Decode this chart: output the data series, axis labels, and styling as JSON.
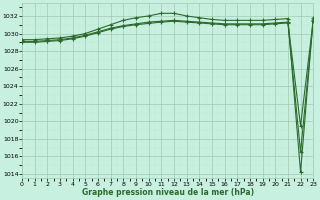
{
  "x": [
    0,
    1,
    2,
    3,
    4,
    5,
    6,
    7,
    8,
    9,
    10,
    11,
    12,
    13,
    14,
    15,
    16,
    17,
    18,
    19,
    20,
    21,
    22,
    23
  ],
  "line1": [
    1029.3,
    1029.3,
    1029.4,
    1029.5,
    1029.7,
    1030.0,
    1030.5,
    1031.0,
    1031.5,
    1031.8,
    1032.0,
    1032.3,
    1032.3,
    1032.0,
    1031.8,
    1031.6,
    1031.5,
    1031.5,
    1031.5,
    1031.5,
    1031.6,
    1031.7,
    1014.2,
    1031.8
  ],
  "line2": [
    1029.1,
    1029.1,
    1029.2,
    1029.3,
    1029.5,
    1029.8,
    1030.2,
    1030.6,
    1030.9,
    1031.1,
    1031.3,
    1031.4,
    1031.5,
    1031.4,
    1031.3,
    1031.2,
    1031.1,
    1031.1,
    1031.1,
    1031.1,
    1031.2,
    1031.3,
    1019.5,
    1031.5
  ],
  "line3": [
    1029.0,
    1029.0,
    1029.1,
    1029.2,
    1029.4,
    1029.7,
    1030.1,
    1030.5,
    1030.8,
    1031.0,
    1031.15,
    1031.3,
    1031.4,
    1031.3,
    1031.2,
    1031.1,
    1031.0,
    1031.0,
    1031.0,
    1031.0,
    1031.1,
    1031.2,
    1016.5,
    1031.4
  ],
  "line_color": "#2d6a2d",
  "bg_color": "#c8f0e0",
  "grid_major_color": "#a0c8b0",
  "grid_minor_color": "#c0e8d0",
  "ylim": [
    1013.5,
    1033.5
  ],
  "yticks": [
    1014,
    1016,
    1018,
    1020,
    1022,
    1024,
    1026,
    1028,
    1030,
    1032
  ],
  "xlim": [
    0,
    23
  ],
  "xticks": [
    0,
    1,
    2,
    3,
    4,
    5,
    6,
    7,
    8,
    9,
    10,
    11,
    12,
    13,
    14,
    15,
    16,
    17,
    18,
    19,
    20,
    21,
    22,
    23
  ],
  "xlabel": "Graphe pression niveau de la mer (hPa)",
  "marker": "+",
  "markersize": 3,
  "linewidth": 0.8
}
